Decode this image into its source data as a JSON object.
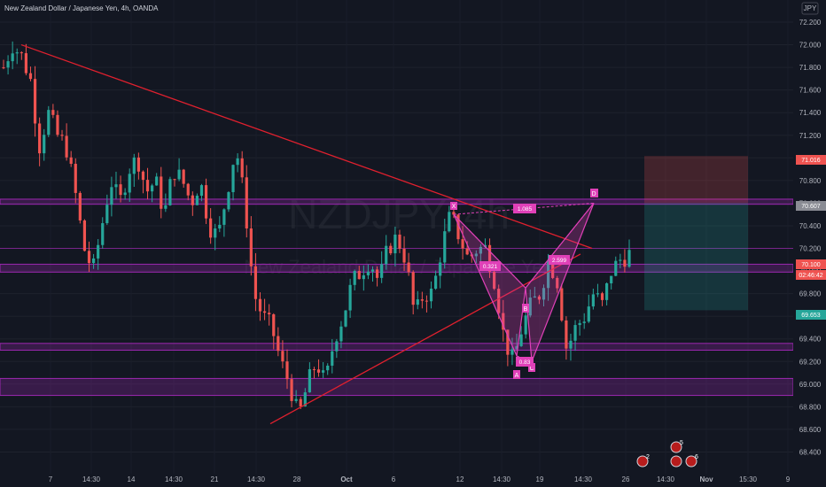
{
  "header": {
    "title": "New Zealand Dollar / Japanese Yen, 4h, OANDA",
    "currency": "JPY"
  },
  "watermark": {
    "symbol": "NZDJPY, 4h",
    "name": "New Zealand Dollar / Japanese Yen"
  },
  "colors": {
    "up": "#26a69a",
    "down": "#ef5350",
    "trendline": "#e0202e",
    "zone": "#9c27b0",
    "pattern": "#e040b8",
    "stop_zone": "#ef5350",
    "target_zone": "#26a69a"
  },
  "pattern_labels": {
    "X": "X",
    "A": "A",
    "B": "B",
    "C": "C",
    "D": "D",
    "r1": "1.085",
    "r2": "0.321",
    "r3": "2.599",
    "r4": "0.83"
  },
  "price_tags": {
    "stop": "71.016",
    "zone_top": "70.607",
    "last": "70.100",
    "countdown": "02:46:42",
    "target": "69.653"
  },
  "events": [
    "2",
    "5",
    "",
    "6"
  ],
  "chart_data": {
    "type": "candlestick",
    "title": "New Zealand Dollar / Japanese Yen, 4h, OANDA",
    "ylabel": "JPY",
    "ylim": [
      68.3,
      72.3
    ],
    "y_ticks": [
      "72.200",
      "72.000",
      "71.800",
      "71.600",
      "71.400",
      "71.200",
      "71.000",
      "70.800",
      "70.600",
      "70.400",
      "70.200",
      "70.000",
      "69.800",
      "69.600",
      "69.400",
      "69.200",
      "69.000",
      "68.800",
      "68.600",
      "68.400"
    ],
    "x_ticks": [
      "7",
      "14:30",
      "14",
      "14:30",
      "21",
      "14:30",
      "28",
      "Oct",
      "6",
      "12",
      "14:30",
      "19",
      "14:30",
      "26",
      "14:30",
      "Nov",
      "15:30",
      "9"
    ],
    "close_anchors": [
      71.8,
      72.0,
      71.9,
      71.7,
      71.1,
      71.4,
      71.2,
      71.1,
      70.7,
      70.2,
      70.0,
      70.4,
      70.8,
      70.6,
      70.9,
      71.0,
      70.7,
      70.8,
      70.5,
      70.9,
      70.8,
      70.6,
      70.8,
      70.4,
      70.3,
      70.7,
      71.1,
      70.6,
      69.8,
      69.6,
      69.5,
      69.2,
      69.0,
      68.7,
      69.0,
      69.2,
      69.0,
      69.4,
      69.6,
      69.9,
      70.0,
      70.1,
      69.9,
      70.2,
      70.3,
      70.1,
      69.6,
      69.8,
      69.8,
      70.2,
      70.5,
      70.3,
      70.1,
      70.2,
      70.2,
      69.9,
      69.4,
      69.2,
      69.5,
      69.7,
      69.8,
      70.1,
      69.9,
      69.3,
      69.5,
      69.6,
      69.8,
      69.7,
      70.0,
      70.1,
      70.15
    ],
    "horizontal_zones": [
      {
        "from": 70.59,
        "to": 70.635
      },
      {
        "from": 69.99,
        "to": 70.06
      },
      {
        "from": 69.3,
        "to": 69.36
      },
      {
        "from": 68.9,
        "to": 69.05
      }
    ],
    "horizontal_lines": [
      70.2
    ],
    "trendlines": [
      {
        "from": [
          "14:30 Sep 7",
          72.0
        ],
        "to": [
          "Oct 17",
          70.2
        ]
      },
      {
        "from": [
          "Sep 25",
          68.65
        ],
        "to": [
          "Oct 17",
          70.15
        ]
      }
    ],
    "harmonic_pattern": {
      "points": {
        "X": 70.5,
        "A": 69.25,
        "B": 69.85,
        "C": 69.2,
        "D": 70.6
      },
      "ratios": [
        "1.085",
        "0.321",
        "2.599",
        "0.83"
      ]
    },
    "position": {
      "entry": 70.6,
      "stop": 71.016,
      "target": 69.653
    },
    "last_price": 70.1,
    "countdown": "02:46:42"
  }
}
